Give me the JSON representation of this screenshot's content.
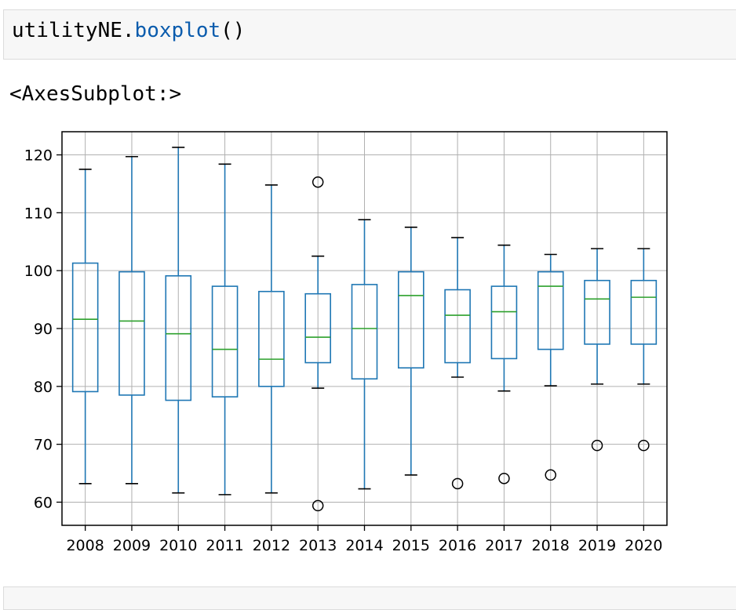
{
  "code_cell": {
    "object": "utilityNE",
    "dot": ".",
    "method": "boxplot",
    "parens": "()"
  },
  "output": {
    "repr": "<AxesSubplot:>"
  },
  "colors": {
    "box": "#1f77b4",
    "median": "#2ca02c",
    "grid": "#b0b0b0",
    "flier": "#000000"
  },
  "chart_data": {
    "type": "boxplot",
    "title": "",
    "xlabel": "",
    "ylabel": "",
    "ylim": [
      56,
      124
    ],
    "yticks": [
      60,
      70,
      80,
      90,
      100,
      110,
      120
    ],
    "grid": true,
    "categories": [
      "2008",
      "2009",
      "2010",
      "2011",
      "2012",
      "2013",
      "2014",
      "2015",
      "2016",
      "2017",
      "2018",
      "2019",
      "2020"
    ],
    "boxes": [
      {
        "whislo": 63.2,
        "q1": 79.1,
        "med": 91.6,
        "q3": 101.3,
        "whishi": 117.5,
        "fliers": []
      },
      {
        "whislo": 63.2,
        "q1": 78.5,
        "med": 91.3,
        "q3": 99.8,
        "whishi": 119.7,
        "fliers": []
      },
      {
        "whislo": 61.6,
        "q1": 77.6,
        "med": 89.1,
        "q3": 99.1,
        "whishi": 121.3,
        "fliers": []
      },
      {
        "whislo": 61.3,
        "q1": 78.2,
        "med": 86.4,
        "q3": 97.3,
        "whishi": 118.4,
        "fliers": []
      },
      {
        "whislo": 61.6,
        "q1": 80.0,
        "med": 84.7,
        "q3": 96.4,
        "whishi": 114.8,
        "fliers": []
      },
      {
        "whislo": 79.7,
        "q1": 84.1,
        "med": 88.5,
        "q3": 96.0,
        "whishi": 102.5,
        "fliers": [
          115.3,
          59.4
        ]
      },
      {
        "whislo": 62.3,
        "q1": 81.3,
        "med": 90.0,
        "q3": 97.6,
        "whishi": 108.8,
        "fliers": []
      },
      {
        "whislo": 64.7,
        "q1": 83.2,
        "med": 95.7,
        "q3": 99.8,
        "whishi": 107.5,
        "fliers": []
      },
      {
        "whislo": 81.6,
        "q1": 84.1,
        "med": 92.3,
        "q3": 96.7,
        "whishi": 105.7,
        "fliers": [
          63.2
        ]
      },
      {
        "whislo": 79.2,
        "q1": 84.8,
        "med": 92.9,
        "q3": 97.3,
        "whishi": 104.4,
        "fliers": [
          64.1
        ]
      },
      {
        "whislo": 80.1,
        "q1": 86.4,
        "med": 97.3,
        "q3": 99.8,
        "whishi": 102.8,
        "fliers": [
          64.7
        ]
      },
      {
        "whislo": 80.4,
        "q1": 87.3,
        "med": 95.1,
        "q3": 98.3,
        "whishi": 103.8,
        "fliers": [
          69.8
        ]
      },
      {
        "whislo": 80.4,
        "q1": 87.3,
        "med": 95.4,
        "q3": 98.3,
        "whishi": 103.8,
        "fliers": [
          69.8
        ]
      }
    ]
  }
}
